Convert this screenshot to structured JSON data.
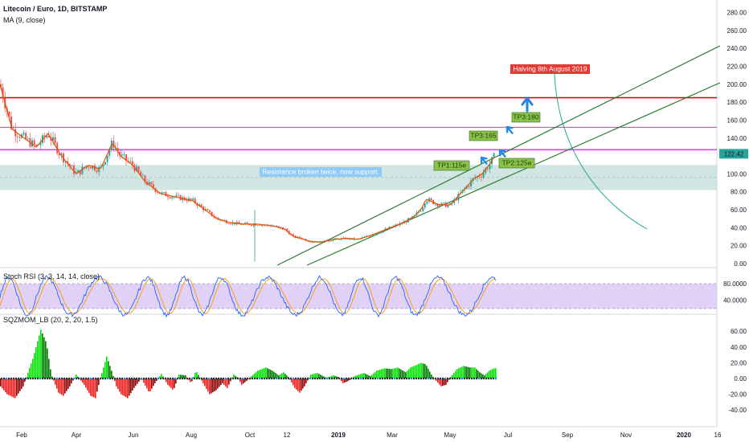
{
  "header": {
    "title": "Litecoin / Euro, 1D, BITSTAMP",
    "indicator": "MA (9, close)",
    "stoch_label": "Stoch RSI (3, 3, 14, 14, close)",
    "mom_label": "SQZMOM_LB (20, 2, 20, 1.5)"
  },
  "colors": {
    "up": "#26a69a",
    "down": "#ef5350",
    "ma": "#e65100",
    "channel": "#2e7d32",
    "resistance": "#b71c1c",
    "magenta": "#e040fb",
    "support_zone": "#c5dedb",
    "stoch_band": "#dcc9f5",
    "mom_up_strong": "#00e600",
    "mom_up_weak": "#007a00",
    "mom_down_strong": "#ff1a1a",
    "mom_down_weak": "#8b0000",
    "arrow": "#1e88e5"
  },
  "chart_data": [
    {
      "type": "candlestick",
      "title": "Litecoin / Euro, 1D, BITSTAMP",
      "x_ticks": [
        "Feb",
        "Apr",
        "Jun",
        "Aug",
        "Oct",
        "12",
        "2019",
        "Mar",
        "May",
        "Jul",
        "Sep",
        "Nov",
        "2020",
        "16"
      ],
      "y_ticks": [
        0,
        20,
        40,
        60,
        80,
        100,
        120,
        140,
        160,
        180,
        200,
        220,
        240,
        260,
        280
      ],
      "ylim": [
        -5,
        285
      ],
      "last_price": "122.42",
      "series": [
        {
          "name": "MA (9, close)",
          "keypoints": [
            [
              0,
              200
            ],
            [
              15,
              150
            ],
            [
              30,
              140
            ],
            [
              45,
              130
            ],
            [
              60,
              145
            ],
            [
              75,
              122
            ],
            [
              90,
              105
            ],
            [
              95,
              100
            ],
            [
              110,
              110
            ],
            [
              125,
              105
            ],
            [
              140,
              135
            ],
            [
              150,
              120
            ],
            [
              165,
              110
            ],
            [
              180,
              92
            ],
            [
              200,
              78
            ],
            [
              220,
              74
            ],
            [
              240,
              70
            ],
            [
              255,
              60
            ],
            [
              270,
              50
            ],
            [
              285,
              46
            ],
            [
              300,
              44
            ],
            [
              320,
              44
            ],
            [
              340,
              42
            ],
            [
              355,
              38
            ],
            [
              365,
              30
            ],
            [
              375,
              28
            ],
            [
              385,
              25
            ],
            [
              400,
              24
            ],
            [
              415,
              27
            ],
            [
              430,
              28
            ],
            [
              445,
              27
            ],
            [
              460,
              31
            ],
            [
              480,
              38
            ],
            [
              500,
              45
            ],
            [
              515,
              52
            ],
            [
              525,
              62
            ],
            [
              530,
              72
            ],
            [
              545,
              66
            ],
            [
              560,
              65
            ],
            [
              575,
              80
            ],
            [
              590,
              95
            ],
            [
              600,
              100
            ],
            [
              610,
              112
            ],
            [
              617,
              122
            ]
          ]
        }
      ],
      "candle_seed": 7,
      "annotations": [
        {
          "label": "Halving 8th August 2019",
          "bg": "#e53935",
          "fg": "#ffffff"
        },
        {
          "label": "TP3:180",
          "bg": "#8bc34a",
          "fg": "#1b3a07"
        },
        {
          "label": "TP3:165",
          "bg": "#8bc34a",
          "fg": "#1b3a07"
        },
        {
          "label": "TP1:115e",
          "bg": "#8bc34a",
          "fg": "#1b3a07"
        },
        {
          "label": "TP2:125e",
          "bg": "#8bc34a",
          "fg": "#1b3a07"
        },
        {
          "label": "Resistance broken twice, now support.",
          "bg": "#90caf9",
          "fg": "#ffffff"
        }
      ],
      "levels": {
        "resistance": 185,
        "upper_line": 152,
        "magenta_line": 127,
        "support_zone": [
          82,
          110
        ],
        "support_mid": 96
      }
    },
    {
      "type": "line",
      "title": "Stoch RSI (3, 3, 14, 14, close)",
      "y_ticks": [
        "80.0000",
        "40.0000"
      ],
      "band": [
        20,
        80
      ],
      "ylim": [
        -5,
        95
      ],
      "period_samples": 18
    },
    {
      "type": "bar",
      "title": "SQZMOM_LB (20, 2, 20, 1.5)",
      "y_ticks": [
        60,
        40,
        20,
        0,
        -20,
        -40
      ],
      "ylim": [
        -45,
        65
      ],
      "keypoints": [
        [
          0,
          -10
        ],
        [
          8,
          -20
        ],
        [
          18,
          -25
        ],
        [
          28,
          -10
        ],
        [
          40,
          25
        ],
        [
          50,
          62
        ],
        [
          57,
          45
        ],
        [
          63,
          5
        ],
        [
          72,
          -18
        ],
        [
          78,
          -22
        ],
        [
          86,
          -10
        ],
        [
          94,
          5
        ],
        [
          104,
          -8
        ],
        [
          112,
          -22
        ],
        [
          118,
          -25
        ],
        [
          124,
          0
        ],
        [
          132,
          28
        ],
        [
          138,
          10
        ],
        [
          144,
          -10
        ],
        [
          150,
          -20
        ],
        [
          158,
          -25
        ],
        [
          166,
          -12
        ],
        [
          175,
          0
        ],
        [
          185,
          -18
        ],
        [
          192,
          -6
        ],
        [
          200,
          6
        ],
        [
          208,
          -8
        ],
        [
          215,
          -15
        ],
        [
          222,
          5
        ],
        [
          230,
          4
        ],
        [
          237,
          -6
        ],
        [
          243,
          10
        ],
        [
          253,
          -8
        ],
        [
          260,
          -20
        ],
        [
          268,
          -15
        ],
        [
          276,
          -6
        ],
        [
          282,
          -12
        ],
        [
          290,
          5
        ],
        [
          295,
          1
        ],
        [
          300,
          -8
        ],
        [
          306,
          -3
        ],
        [
          312,
          3
        ],
        [
          320,
          10
        ],
        [
          330,
          14
        ],
        [
          338,
          10
        ],
        [
          346,
          4
        ],
        [
          352,
          8
        ],
        [
          358,
          2
        ],
        [
          366,
          -12
        ],
        [
          372,
          -18
        ],
        [
          378,
          -10
        ],
        [
          386,
          5
        ],
        [
          394,
          7
        ],
        [
          405,
          1
        ],
        [
          414,
          4
        ],
        [
          420,
          2
        ],
        [
          426,
          -6
        ],
        [
          433,
          -3
        ],
        [
          440,
          3
        ],
        [
          446,
          5
        ],
        [
          452,
          7
        ],
        [
          460,
          3
        ],
        [
          468,
          10
        ],
        [
          478,
          13
        ],
        [
          486,
          12
        ],
        [
          494,
          14
        ],
        [
          504,
          8
        ],
        [
          510,
          14
        ],
        [
          517,
          17
        ],
        [
          523,
          20
        ],
        [
          529,
          18
        ],
        [
          536,
          5
        ],
        [
          542,
          -3
        ],
        [
          548,
          -10
        ],
        [
          554,
          -8
        ],
        [
          560,
          2
        ],
        [
          568,
          12
        ],
        [
          576,
          16
        ],
        [
          584,
          14
        ],
        [
          590,
          14
        ],
        [
          596,
          8
        ],
        [
          602,
          4
        ],
        [
          608,
          10
        ],
        [
          614,
          13
        ],
        [
          617,
          13
        ]
      ]
    }
  ]
}
